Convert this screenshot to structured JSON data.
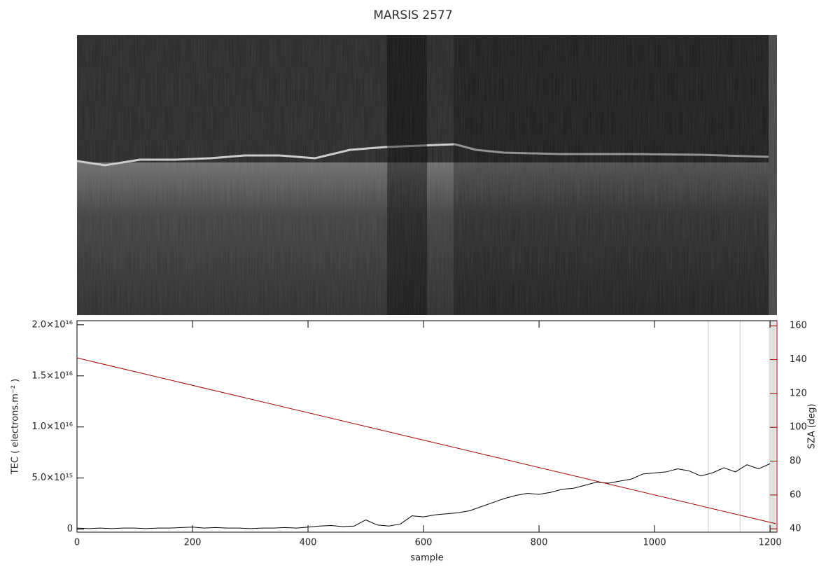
{
  "chart_data": {
    "type": "line",
    "title": "MARSIS 2577",
    "xlabel": "sample",
    "ylabel": "TEC ( electrons.m⁻² )",
    "y2label": "SZA (deg)",
    "xlim": [
      0,
      1212
    ],
    "xticks": [
      0,
      200,
      400,
      600,
      800,
      1000,
      1200
    ],
    "ylim": [
      -300000000000000.0,
      2.04e+16
    ],
    "yticks": [
      0,
      {
        "value": 5000000000000000.0,
        "label": "5.0×10¹⁵"
      },
      {
        "value": 1e+16,
        "label": "1.0×10¹⁶"
      },
      {
        "value": 1.5e+16,
        "label": "1.5×10¹⁶"
      },
      {
        "value": 2e+16,
        "label": "2.0×10¹⁶"
      }
    ],
    "y2lim": [
      38,
      163
    ],
    "y2ticks": [
      40,
      60,
      80,
      100,
      120,
      140,
      160
    ],
    "y2color": "#a00000",
    "vlines": [
      1093,
      1148
    ],
    "span": [
      1198,
      1210
    ],
    "series": [
      {
        "color": "#000000",
        "x": [
          0,
          20,
          40,
          60,
          80,
          100,
          120,
          140,
          160,
          180,
          200,
          220,
          240,
          260,
          280,
          300,
          320,
          340,
          360,
          380,
          400,
          420,
          440,
          460,
          480,
          500,
          520,
          540,
          560,
          580,
          600,
          620,
          640,
          660,
          680,
          700,
          720,
          740,
          760,
          780,
          800,
          820,
          840,
          860,
          880,
          900,
          920,
          940,
          960,
          980,
          1000,
          1020,
          1040,
          1060,
          1080,
          1100,
          1120,
          1140,
          1160,
          1180,
          1200
        ],
        "values": [
          100000000000000.0,
          50000000000000.0,
          100000000000000.0,
          50000000000000.0,
          100000000000000.0,
          100000000000000.0,
          50000000000000.0,
          100000000000000.0,
          100000000000000.0,
          150000000000000.0,
          200000000000000.0,
          100000000000000.0,
          150000000000000.0,
          100000000000000.0,
          100000000000000.0,
          50000000000000.0,
          100000000000000.0,
          100000000000000.0,
          150000000000000.0,
          100000000000000.0,
          200000000000000.0,
          300000000000000.0,
          350000000000000.0,
          250000000000000.0,
          300000000000000.0,
          900000000000000.0,
          400000000000000.0,
          300000000000000.0,
          500000000000000.0,
          1300000000000000.0,
          1200000000000000.0,
          1400000000000000.0,
          1500000000000000.0,
          1600000000000000.0,
          1800000000000000.0,
          2200000000000000.0,
          2600000000000000.0,
          3000000000000000.0,
          3300000000000000.0,
          3500000000000000.0,
          3400000000000000.0,
          3600000000000000.0,
          3900000000000000.0,
          4000000000000000.0,
          4300000000000000.0,
          4600000000000000.0,
          4500000000000000.0,
          4700000000000000.0,
          4900000000000000.0,
          5400000000000000.0,
          5500000000000000.0,
          5600000000000000.0,
          5900000000000000.0,
          5700000000000000.0,
          5200000000000000.0,
          5500000000000000.0,
          6000000000000000.0,
          5600000000000000.0,
          6300000000000000.0,
          5900000000000000.0,
          6400000000000000.0
        ]
      },
      {
        "color": "#a00000",
        "axis": "y2",
        "x": [
          0,
          1210
        ],
        "values": [
          141,
          43
        ]
      }
    ]
  }
}
